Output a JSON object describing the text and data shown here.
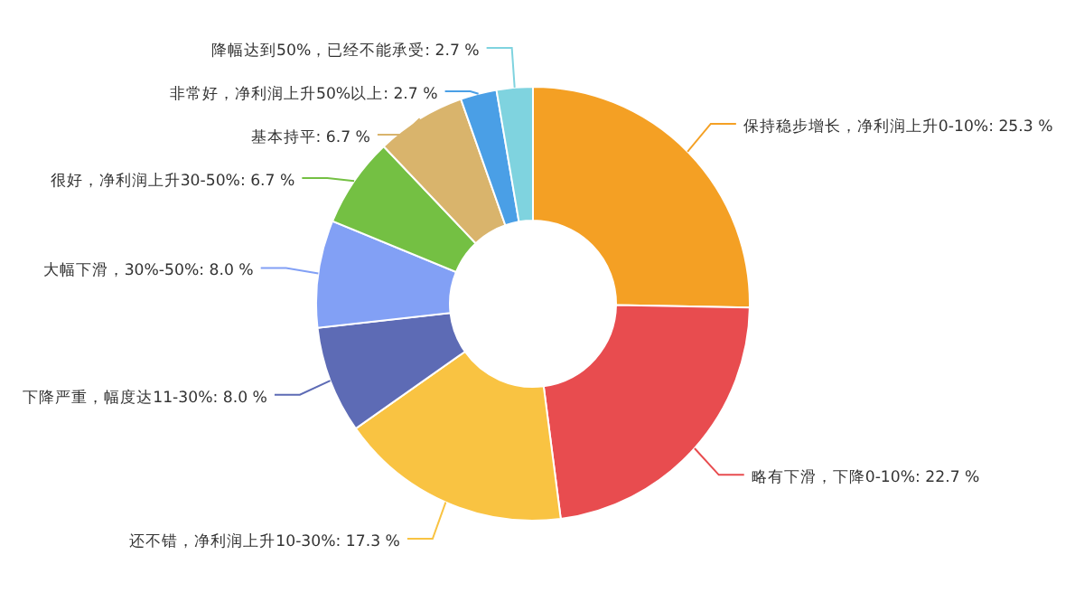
{
  "chart_data": {
    "type": "donut",
    "categories": [
      "保持稳步增长，净利润上升0-10%",
      "略有下滑，下降0-10%",
      "还不错，净利润上升10-30%",
      "下降严重，幅度达11-30%",
      "大幅下滑，30%-50%",
      "很好，净利润上升30-50%",
      "基本持平",
      "非常好，净利润上升50%以上",
      "降幅达到50%，已经不能承受"
    ],
    "values": [
      25.3,
      22.7,
      17.3,
      8.0,
      8.0,
      6.7,
      6.7,
      2.7,
      2.7
    ],
    "value_labels": [
      "25.3 %",
      "22.7 %",
      "17.3 %",
      "8.0 %",
      "8.0 %",
      "6.7 %",
      "6.7 %",
      "2.7 %",
      "2.7 %"
    ],
    "colors": [
      "#f4a024",
      "#e84c4f",
      "#f9c342",
      "#5d6bb5",
      "#82a0f5",
      "#74c043",
      "#d9b46c",
      "#4a9fe6",
      "#7fd3df"
    ]
  }
}
